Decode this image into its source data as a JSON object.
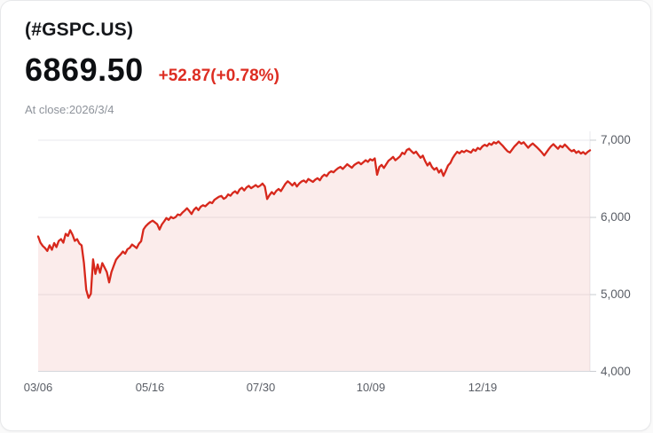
{
  "header": {
    "symbol": "(#GSPC.US)",
    "price": "6869.50",
    "change": "+52.87(+0.78%)",
    "change_color": "#dd2d22",
    "close_label": "At close:2026/3/4"
  },
  "chart_data": {
    "type": "area",
    "title": "",
    "xlabel": "",
    "ylabel": "",
    "legend": false,
    "grid": true,
    "ylim": [
      4000,
      7115
    ],
    "y_ticks": [
      {
        "label": "7,000",
        "value": 7000
      },
      {
        "label": "6,000",
        "value": 6000
      },
      {
        "label": "5,000",
        "value": 5000
      },
      {
        "label": "4,000",
        "value": 4000
      }
    ],
    "x_ticks": [
      {
        "label": "03/06",
        "pos": 0.0
      },
      {
        "label": "05/16",
        "pos": 0.2026
      },
      {
        "label": "07/30",
        "pos": 0.4035
      },
      {
        "label": "10/09",
        "pos": 0.6029
      },
      {
        "label": "12/19",
        "pos": 0.8055
      }
    ],
    "colors": {
      "line": "#d7281c",
      "fill": "#d7281c",
      "fill_opacity": 0.09,
      "grid": "#e9eaec",
      "axis": "#d5d7db",
      "tick": "#caccd1",
      "tick_label": "#5a5e66"
    },
    "values": [
      5753,
      5672,
      5630,
      5604,
      5565,
      5638,
      5580,
      5668,
      5615,
      5695,
      5718,
      5672,
      5787,
      5760,
      5833,
      5776,
      5695,
      5718,
      5661,
      5638,
      5410,
      5062,
      4958,
      5010,
      5456,
      5268,
      5390,
      5282,
      5408,
      5352,
      5292,
      5158,
      5292,
      5374,
      5452,
      5488,
      5520,
      5558,
      5530,
      5588,
      5606,
      5648,
      5626,
      5602,
      5660,
      5692,
      5844,
      5886,
      5916,
      5940,
      5958,
      5936,
      5912,
      5842,
      5908,
      5948,
      5992,
      5968,
      6006,
      5988,
      6004,
      6038,
      6028,
      6062,
      6088,
      6118,
      6084,
      6044,
      6098,
      6128,
      6094,
      6138,
      6158,
      6144,
      6173,
      6198,
      6184,
      6228,
      6248,
      6268,
      6278,
      6240,
      6258,
      6298,
      6280,
      6318,
      6338,
      6310,
      6362,
      6384,
      6350,
      6388,
      6408,
      6378,
      6398,
      6418,
      6394,
      6412,
      6438,
      6400,
      6238,
      6288,
      6328,
      6300,
      6344,
      6368,
      6340,
      6388,
      6436,
      6468,
      6444,
      6414,
      6448,
      6400,
      6438,
      6464,
      6478,
      6454,
      6498,
      6478,
      6460,
      6488,
      6508,
      6480,
      6528,
      6554,
      6534,
      6578,
      6598,
      6584,
      6614,
      6638,
      6654,
      6628,
      6658,
      6688,
      6664,
      6644,
      6678,
      6698,
      6714,
      6688,
      6714,
      6740,
      6720,
      6754,
      6738,
      6764,
      6552,
      6654,
      6680,
      6640,
      6688,
      6734,
      6758,
      6784,
      6740,
      6764,
      6790,
      6838,
      6820,
      6874,
      6890,
      6858,
      6830,
      6852,
      6812,
      6772,
      6800,
      6729,
      6672,
      6710,
      6652,
      6618,
      6642,
      6580,
      6617,
      6538,
      6602,
      6672,
      6705,
      6765,
      6812,
      6849,
      6830,
      6860,
      6845,
      6868,
      6854,
      6840,
      6880,
      6862,
      6900,
      6882,
      6920,
      6940,
      6924,
      6958,
      6940,
      6974,
      6958,
      6984,
      6954,
      6924,
      6888,
      6856,
      6840,
      6878,
      6918,
      6948,
      6980,
      6954,
      6974,
      6938,
      6902,
      6934,
      6958,
      6930,
      6904,
      6872,
      6840,
      6802,
      6844,
      6884,
      6922,
      6948,
      6918,
      6888,
      6928,
      6908,
      6944,
      6914,
      6880,
      6856,
      6874,
      6836,
      6858,
      6826,
      6846,
      6820,
      6848,
      6869.5
    ]
  }
}
